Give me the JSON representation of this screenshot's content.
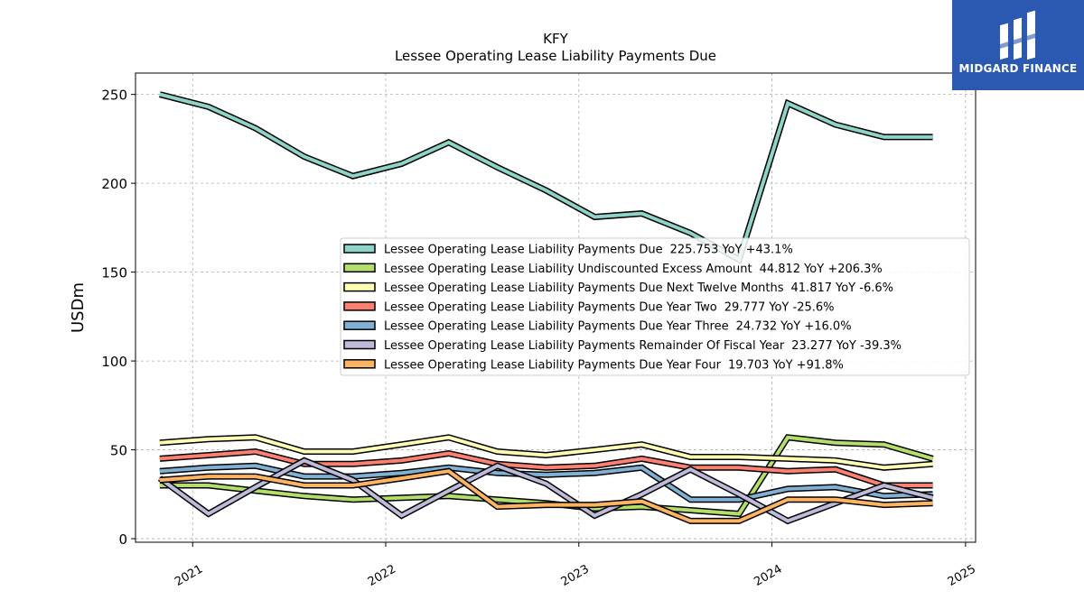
{
  "brand": {
    "name": "MIDGARD FINANCE",
    "icon": "midgard-m-logo-icon",
    "color": "#2b58b0"
  },
  "chart_data": {
    "type": "line",
    "title": "KFY",
    "subtitle": "Lessee Operating Lease Liability Payments Due",
    "ylabel": "USDm",
    "xlabel": "",
    "xlim": [
      "2020-09-15",
      "2025-01-20"
    ],
    "ylim": [
      -2,
      262
    ],
    "yticks": [
      0,
      50,
      100,
      150,
      200,
      250
    ],
    "xticks": [
      {
        "label": "2021",
        "date": "2021-01-01"
      },
      {
        "label": "2022",
        "date": "2022-01-01"
      },
      {
        "label": "2023",
        "date": "2023-01-01"
      },
      {
        "label": "2024",
        "date": "2024-01-01"
      },
      {
        "label": "2025",
        "date": "2025-01-01"
      }
    ],
    "grid": true,
    "legend_position": "center-right",
    "x": [
      "2020-10-31",
      "2021-01-31",
      "2021-04-30",
      "2021-07-31",
      "2021-10-31",
      "2022-01-31",
      "2022-04-30",
      "2022-07-31",
      "2022-10-31",
      "2023-01-31",
      "2023-04-30",
      "2023-07-31",
      "2023-10-31",
      "2024-01-31",
      "2024-04-30",
      "2024-07-31",
      "2024-10-31"
    ],
    "series": [
      {
        "name": "Lessee Operating Lease Liability Payments Due",
        "last": "225.753",
        "yoy": "YoY +43.1%",
        "color": "#8dd3c7",
        "values": [
          250,
          243,
          231,
          215,
          204,
          211,
          223,
          209,
          196,
          181,
          183,
          172,
          157,
          245,
          233,
          226,
          226
        ]
      },
      {
        "name": "Lessee Operating Lease Liability Undiscounted Excess Amount",
        "last": "44.812",
        "yoy": "YoY +206.3%",
        "color": "#b3de69",
        "values": [
          30,
          30,
          27,
          24,
          22,
          23,
          24,
          22,
          20,
          17,
          18,
          16,
          14,
          57,
          54,
          53,
          45
        ]
      },
      {
        "name": "Lessee Operating Lease Liability Payments Due Next Twelve Months",
        "last": "41.817",
        "yoy": "YoY -6.6%",
        "color": "#ffffb3",
        "values": [
          54,
          56,
          57,
          49,
          49,
          53,
          57,
          49,
          47,
          50,
          53,
          46,
          46,
          45,
          44,
          40,
          42
        ]
      },
      {
        "name": "Lessee Operating Lease Liability Payments Due Year Two",
        "last": "29.777",
        "yoy": "YoY -25.6%",
        "color": "#fb8072",
        "values": [
          45,
          47,
          49,
          42,
          42,
          44,
          48,
          42,
          40,
          41,
          45,
          40,
          40,
          38,
          39,
          30,
          30
        ]
      },
      {
        "name": "Lessee Operating Lease Liability Payments Due Year Three",
        "last": "24.732",
        "yoy": "YoY +16.0%",
        "color": "#80b1d3",
        "values": [
          38,
          40,
          41,
          35,
          35,
          37,
          40,
          37,
          36,
          37,
          40,
          22,
          22,
          28,
          29,
          24,
          25
        ]
      },
      {
        "name": "Lessee Operating Lease Liability Payments Remainder Of Fiscal Year",
        "last": "23.277",
        "yoy": "YoY -39.3%",
        "color": "#bebada",
        "values": [
          34,
          14,
          29,
          44,
          33,
          13,
          27,
          41,
          31,
          13,
          25,
          39,
          25,
          10,
          20,
          30,
          23
        ]
      },
      {
        "name": "Lessee Operating Lease Liability Payments Due Year Four",
        "last": "19.703",
        "yoy": "YoY +91.8%",
        "color": "#fdb462",
        "values": [
          33,
          35,
          35,
          30,
          30,
          34,
          38,
          18,
          19,
          19,
          21,
          10,
          10,
          22,
          22,
          19,
          20
        ]
      }
    ]
  }
}
